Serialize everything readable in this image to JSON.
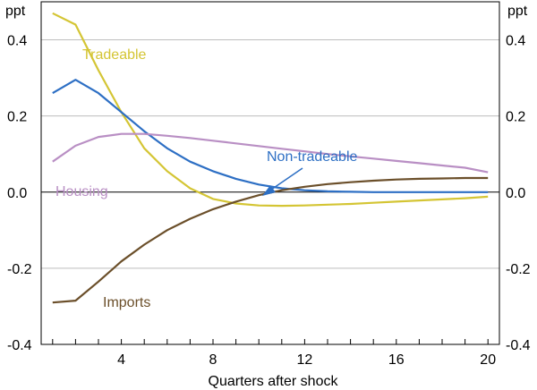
{
  "chart_data": {
    "type": "line",
    "title": "",
    "xlabel": "Quarters after shock",
    "ylabel_left": "ppt",
    "ylabel_right": "ppt",
    "xlim": [
      0.5,
      20.5
    ],
    "ylim": [
      -0.4,
      0.5
    ],
    "xticks": [
      4,
      8,
      12,
      16,
      20
    ],
    "yticks": [
      -0.4,
      -0.2,
      0.0,
      0.2,
      0.4
    ],
    "ytick_labels": [
      "-0.4",
      "-0.2",
      "0.0",
      "0.2",
      "0.4"
    ],
    "grid": true,
    "x": [
      1,
      2,
      3,
      4,
      5,
      6,
      7,
      8,
      9,
      10,
      11,
      12,
      13,
      14,
      15,
      16,
      17,
      18,
      19,
      20
    ],
    "series": [
      {
        "name": "Tradeable",
        "color": "#d4c534",
        "values": [
          0.47,
          0.44,
          0.32,
          0.21,
          0.115,
          0.055,
          0.01,
          -0.018,
          -0.03,
          -0.035,
          -0.036,
          -0.035,
          -0.033,
          -0.031,
          -0.028,
          -0.025,
          -0.022,
          -0.019,
          -0.016,
          -0.012
        ]
      },
      {
        "name": "Non-tradeable",
        "color": "#2d6fc4",
        "values": [
          0.26,
          0.295,
          0.26,
          0.21,
          0.16,
          0.115,
          0.08,
          0.055,
          0.035,
          0.02,
          0.01,
          0.005,
          0.002,
          0.001,
          0.0,
          0.0,
          0.0,
          0.0,
          0.0,
          0.0
        ]
      },
      {
        "name": "Housing",
        "color": "#b98fc4",
        "values": [
          0.08,
          0.122,
          0.145,
          0.153,
          0.153,
          0.148,
          0.142,
          0.135,
          0.128,
          0.121,
          0.114,
          0.107,
          0.1,
          0.094,
          0.088,
          0.082,
          0.076,
          0.07,
          0.064,
          0.052
        ]
      },
      {
        "name": "Imports",
        "color": "#6b4f2a",
        "values": [
          -0.29,
          -0.285,
          -0.235,
          -0.182,
          -0.138,
          -0.1,
          -0.07,
          -0.045,
          -0.025,
          -0.008,
          0.005,
          0.014,
          0.021,
          0.026,
          0.03,
          0.033,
          0.035,
          0.036,
          0.037,
          0.037
        ]
      }
    ],
    "annotations": [
      {
        "text": "Tradeable",
        "series": "Tradeable"
      },
      {
        "text": "Non-tradeable",
        "series": "Non-tradeable",
        "arrow": true
      },
      {
        "text": "Housing",
        "series": "Housing"
      },
      {
        "text": "Imports",
        "series": "Imports"
      }
    ]
  }
}
